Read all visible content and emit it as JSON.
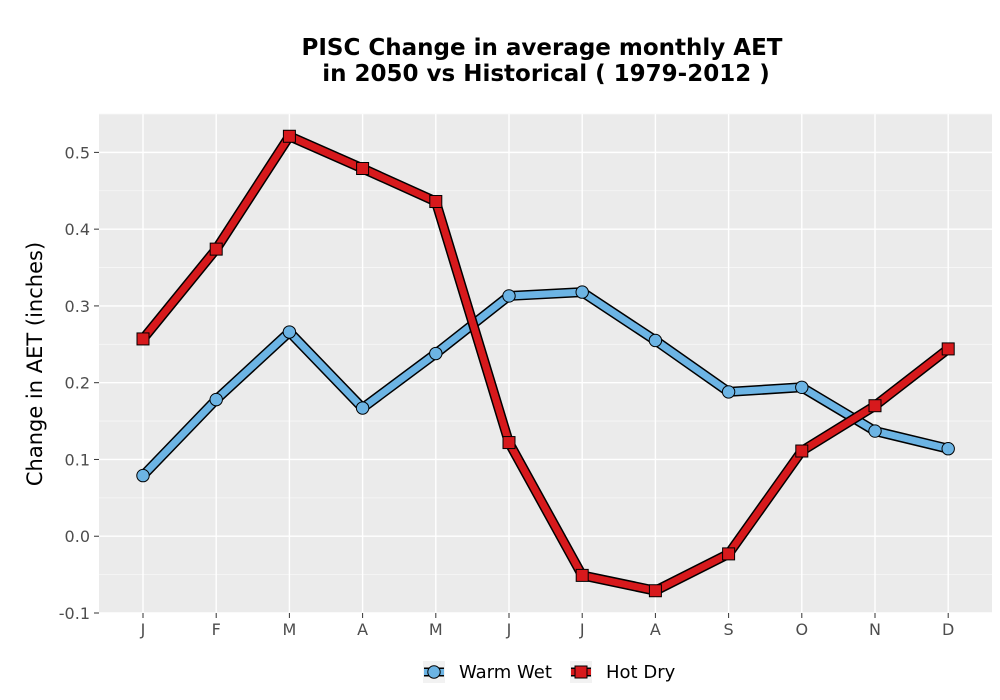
{
  "chart_data": {
    "type": "line",
    "title_lines": [
      "PISC  Change in average monthly AET",
      "in 2050 vs Historical ( 1979-2012 )"
    ],
    "xlabel": "",
    "ylabel": "Change in AET (inches)",
    "categories": [
      "J",
      "F",
      "M",
      "A",
      "M",
      "J",
      "J",
      "A",
      "S",
      "O",
      "N",
      "D"
    ],
    "yticks": [
      "-0.1",
      "0.0",
      "0.1",
      "0.2",
      "0.3",
      "0.4",
      "0.5"
    ],
    "ylim": [
      -0.1,
      0.55
    ],
    "grid": true,
    "legend_position": "bottom",
    "series": [
      {
        "name": "Warm Wet",
        "color": "#6CB4E4",
        "marker": "circle",
        "values": [
          0.079,
          0.178,
          0.266,
          0.167,
          0.238,
          0.313,
          0.318,
          0.255,
          0.188,
          0.194,
          0.137,
          0.114
        ]
      },
      {
        "name": "Hot Dry",
        "color": "#D7191C",
        "marker": "square",
        "values": [
          0.257,
          0.374,
          0.521,
          0.479,
          0.436,
          0.122,
          -0.051,
          -0.071,
          -0.023,
          0.111,
          0.17,
          0.244
        ]
      }
    ]
  }
}
